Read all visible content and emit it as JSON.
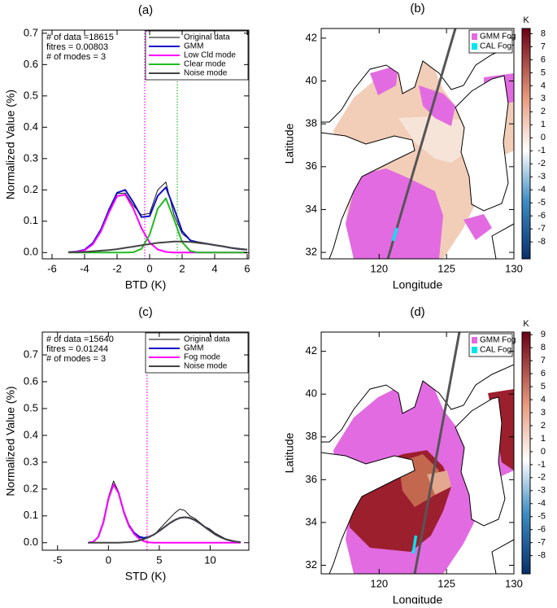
{
  "chart_data": [
    {
      "type": "line",
      "title": "(a)",
      "xlabel": "BTD (K)",
      "ylabel": "Normalized Value (%)",
      "annotations": [
        "# of data =18615",
        "fitres =  0.00803",
        "# of modes = 3"
      ],
      "x": [
        -5,
        -4.5,
        -4,
        -3.5,
        -3,
        -2.5,
        -2,
        -1.5,
        -1,
        -0.5,
        0,
        0.5,
        1,
        1.5,
        2,
        2.5,
        3,
        3.5,
        4,
        4.5,
        5,
        5.5,
        6
      ],
      "xlim": [
        -6.6,
        6.1
      ],
      "xticks": [
        -6,
        -4,
        -2,
        0,
        2,
        4,
        6
      ],
      "ylim": [
        -0.02,
        0.71
      ],
      "yticks": [
        {
          "value": 0,
          "label": "0.0"
        },
        0.1,
        0.2,
        0.3,
        0.4,
        0.5,
        0.6,
        0.7
      ],
      "legend": "upper right",
      "series": [
        {
          "name": "Original data",
          "color": "#000000",
          "values": [
            0,
            0.002,
            0.01,
            0.028,
            0.07,
            0.14,
            0.188,
            0.19,
            0.15,
            0.12,
            0.125,
            0.2,
            0.225,
            0.12,
            0.06,
            0.04,
            0.034,
            0.03,
            0.025,
            0.02,
            0.014,
            0.01,
            0.008
          ]
        },
        {
          "name": "GMM",
          "color": "#1010c8",
          "values": [
            0.001,
            0.003,
            0.009,
            0.03,
            0.073,
            0.136,
            0.191,
            0.2,
            0.16,
            0.113,
            0.116,
            0.181,
            0.208,
            0.141,
            0.068,
            0.039,
            0.031,
            0.028,
            0.024,
            0.02,
            0.015,
            0.012,
            0.009
          ]
        },
        {
          "name": "Low Cld mode",
          "color": "#ff00ff",
          "values": [
            0,
            0.002,
            0.007,
            0.026,
            0.067,
            0.128,
            0.18,
            0.185,
            0.14,
            0.078,
            0.032,
            0.01,
            0.002,
            0,
            0,
            0,
            0,
            0,
            0,
            0,
            0,
            0,
            0
          ]
        },
        {
          "name": "Clear mode",
          "color": "#22bb22",
          "values": [
            0,
            0,
            0,
            0,
            0,
            0,
            0,
            0,
            0.001,
            0.012,
            0.057,
            0.14,
            0.173,
            0.106,
            0.033,
            0.005,
            0,
            0,
            0,
            0,
            0,
            0,
            0
          ]
        },
        {
          "name": "Noise mode",
          "color": "#444444",
          "values": [
            0.001,
            0.001,
            0.002,
            0.004,
            0.006,
            0.008,
            0.011,
            0.015,
            0.019,
            0.023,
            0.027,
            0.031,
            0.033,
            0.035,
            0.035,
            0.034,
            0.031,
            0.028,
            0.024,
            0.02,
            0.015,
            0.012,
            0.009
          ]
        }
      ],
      "vlines": [
        {
          "value": -0.3,
          "color": "#ff00ff"
        },
        {
          "value": 1.7,
          "color": "#22bb22"
        }
      ]
    },
    {
      "type": "map",
      "title": "(b)",
      "xlabel": "Longitude",
      "ylabel": "Latitude",
      "xlim": [
        115.7,
        130
      ],
      "xticks": [
        120,
        125,
        130
      ],
      "ylim": [
        31.7,
        42.45
      ],
      "yticks": [
        32,
        34,
        36,
        38,
        40,
        42
      ],
      "colorbar_label": "K",
      "clim": [
        -9.3,
        8.4
      ],
      "cticks": [
        -8,
        -7,
        -6,
        -5,
        -4,
        -3,
        -2,
        -1,
        0,
        1,
        2,
        3,
        4,
        5,
        6,
        7,
        8
      ],
      "legend_items": [
        {
          "name": "GMM Fog",
          "color": "#e26be2"
        },
        {
          "name": "CAL Fog",
          "color": "#00e5ee"
        }
      ]
    },
    {
      "type": "line",
      "title": "(c)",
      "xlabel": "STD (K)",
      "ylabel": "Normalized Value (%)",
      "annotations": [
        "# of data =15640",
        "fitres =  0.01244",
        "# of modes = 3"
      ],
      "x": [
        -2,
        -1.5,
        -1,
        -0.5,
        0,
        0.5,
        1,
        1.5,
        2,
        2.5,
        3,
        3.5,
        4,
        4.5,
        5,
        5.5,
        6,
        6.5,
        7,
        7.5,
        8,
        8.5,
        9,
        9.5,
        10,
        10.5,
        11,
        11.5,
        12,
        12.5,
        13
      ],
      "xlim": [
        -6.5,
        13.8
      ],
      "xticks": [
        -5,
        0,
        5,
        10
      ],
      "ylim": [
        -0.028,
        0.785
      ],
      "yticks": [
        {
          "value": 0,
          "label": "0.0"
        },
        0.1,
        0.2,
        0.3,
        0.4,
        0.5,
        0.6,
        0.7
      ],
      "legend": "upper right",
      "series": [
        {
          "name": "Original data",
          "color": "#000000",
          "values": [
            0,
            0.002,
            0.02,
            0.08,
            0.17,
            0.23,
            0.19,
            0.11,
            0.06,
            0.035,
            0.02,
            0.015,
            0.02,
            0.03,
            0.05,
            0.07,
            0.09,
            0.11,
            0.125,
            0.12,
            0.1,
            0.09,
            0.075,
            0.06,
            0.05,
            0.035,
            0.025,
            0.015,
            0.01,
            0.005,
            0.003
          ]
        },
        {
          "name": "GMM",
          "color": "#1010c8",
          "values": [
            0,
            0.003,
            0.021,
            0.075,
            0.163,
            0.217,
            0.186,
            0.117,
            0.067,
            0.038,
            0.023,
            0.018,
            0.022,
            0.031,
            0.044,
            0.058,
            0.072,
            0.084,
            0.092,
            0.095,
            0.092,
            0.084,
            0.072,
            0.058,
            0.044,
            0.031,
            0.021,
            0.013,
            0.008,
            0.004,
            0.002
          ]
        },
        {
          "name": "Fog mode",
          "color": "#ff00ff",
          "values": [
            0,
            0.003,
            0.021,
            0.075,
            0.163,
            0.217,
            0.186,
            0.116,
            0.065,
            0.034,
            0.015,
            0.005,
            0.001,
            0,
            0,
            0,
            0,
            0,
            0,
            0,
            0,
            0,
            0,
            0,
            0,
            0,
            0,
            0,
            0,
            0,
            0
          ]
        },
        {
          "name": "Noise mode",
          "color": "#444444",
          "values": [
            0,
            0,
            0,
            0,
            0,
            0,
            0,
            0.001,
            0.002,
            0.004,
            0.008,
            0.013,
            0.021,
            0.031,
            0.044,
            0.058,
            0.072,
            0.084,
            0.092,
            0.095,
            0.092,
            0.084,
            0.072,
            0.058,
            0.044,
            0.031,
            0.021,
            0.013,
            0.008,
            0.004,
            0.002
          ]
        }
      ],
      "vlines": [
        {
          "value": 3.8,
          "color": "#ff00ff"
        }
      ]
    },
    {
      "type": "map",
      "title": "(d)",
      "xlabel": "Longitude",
      "ylabel": "Latitude",
      "xlim": [
        115.7,
        130
      ],
      "xticks": [
        120,
        125,
        130
      ],
      "ylim": [
        31.6,
        42.9
      ],
      "yticks": [
        32,
        34,
        36,
        38,
        40,
        42
      ],
      "colorbar_label": "K",
      "clim": [
        -9.4,
        9.2
      ],
      "cticks": [
        -8,
        -7,
        -6,
        -5,
        -4,
        -3,
        -2,
        -1,
        0,
        1,
        2,
        3,
        4,
        5,
        6,
        7,
        8,
        9
      ],
      "legend_items": [
        {
          "name": "GMM Fog",
          "color": "#e26be2"
        },
        {
          "name": "CAL Fog",
          "color": "#00e5ee"
        }
      ]
    }
  ]
}
